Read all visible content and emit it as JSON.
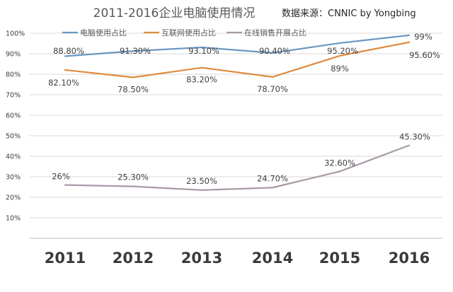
{
  "chart_data": {
    "type": "line",
    "title": "2011-2016企业电脑使用情况",
    "subtitle": "数据来源：CNNIC by Yongbing",
    "xlabel": "",
    "ylabel": "",
    "categories": [
      "2011",
      "2012",
      "2013",
      "2014",
      "2015",
      "2016"
    ],
    "ylim": [
      0,
      100
    ],
    "yticks": [
      "10%",
      "20%",
      "30%",
      "40%",
      "50%",
      "60%",
      "70%",
      "80%",
      "90%",
      "100%"
    ],
    "grid": true,
    "legend_position": "top",
    "series": [
      {
        "name": "电脑使用占比",
        "color": "#6c97c1",
        "values": [
          88.8,
          91.3,
          93.1,
          90.4,
          95.2,
          99
        ],
        "labels": [
          "88.80%",
          "91.30%",
          "93.10%",
          "90.40%",
          "95.20%",
          "99%"
        ]
      },
      {
        "name": "互联网使用占比",
        "color": "#e08a3f",
        "values": [
          82.1,
          78.5,
          83.2,
          78.7,
          89,
          95.6
        ],
        "labels": [
          "82.10%",
          "78.50%",
          "83.20%",
          "78.70%",
          "89%",
          "95.60%"
        ]
      },
      {
        "name": "在线销售开展占比",
        "color": "#a89aa8",
        "values": [
          26,
          25.3,
          23.5,
          24.7,
          32.6,
          45.3
        ],
        "labels": [
          "26%",
          "25.30%",
          "23.50%",
          "24.70%",
          "32.60%",
          "45.30%"
        ]
      }
    ]
  }
}
